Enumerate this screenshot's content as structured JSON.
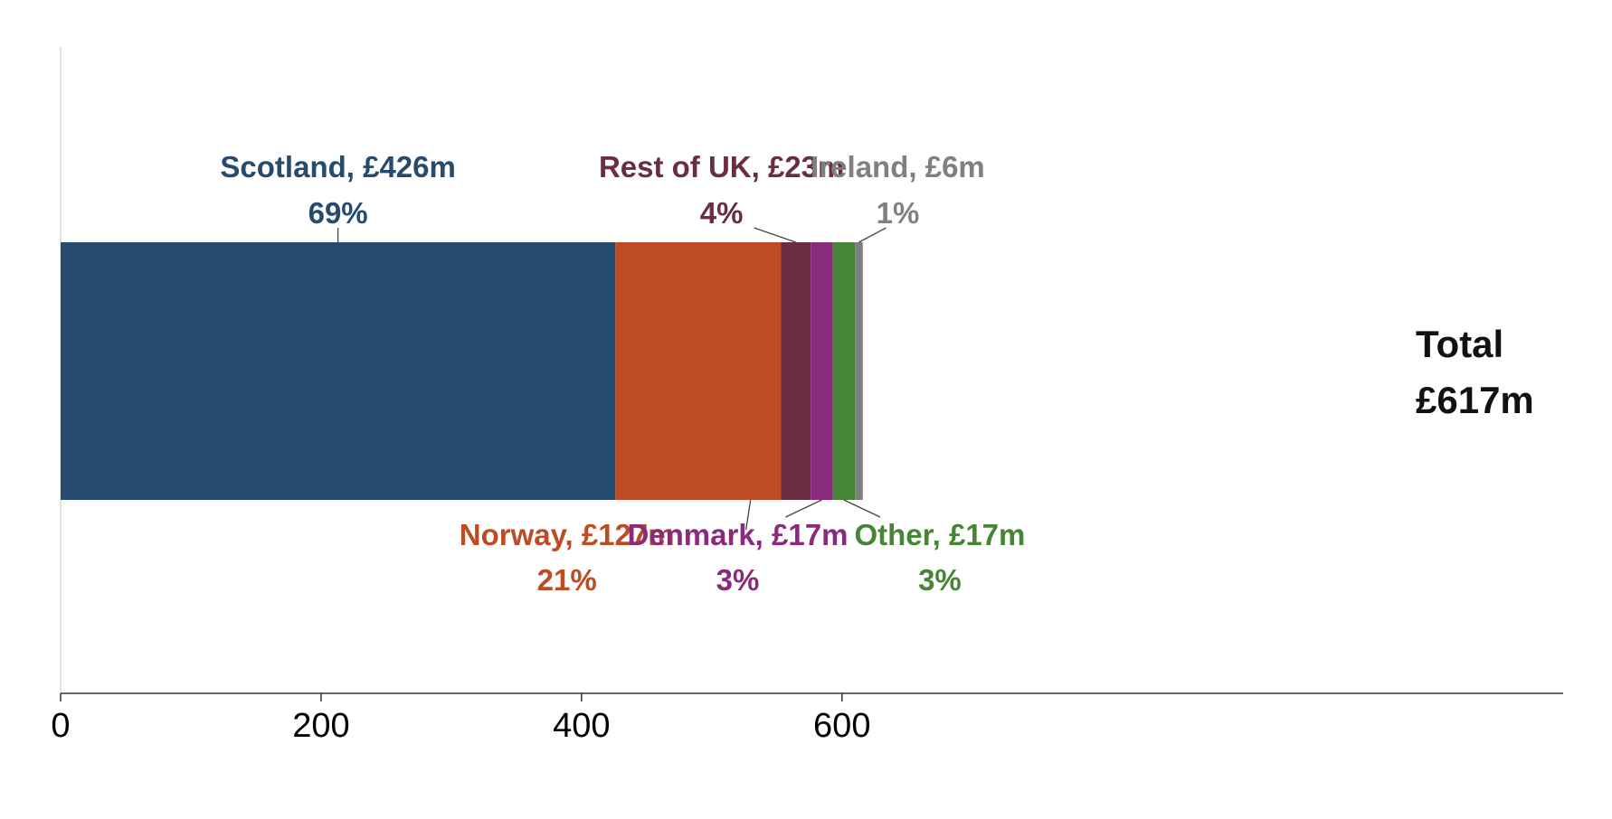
{
  "chart_data": {
    "type": "bar",
    "orientation": "horizontal",
    "stacked": true,
    "series": [
      {
        "name": "Scotland",
        "value": 426,
        "value_label": "Scotland, £426m",
        "percent_label": "69%",
        "color": "#264B6E",
        "label_side": "top"
      },
      {
        "name": "Norway",
        "value": 127,
        "value_label": "Norway, £127m",
        "percent_label": "21%",
        "color": "#BD4C24",
        "label_side": "bottom"
      },
      {
        "name": "Rest of UK",
        "value": 23,
        "value_label": "Rest of UK, £23m",
        "percent_label": "4%",
        "color": "#6B2D41",
        "label_side": "top"
      },
      {
        "name": "Denmark",
        "value": 17,
        "value_label": "Denmark, £17m",
        "percent_label": "3%",
        "color": "#8A2A7C",
        "label_side": "bottom"
      },
      {
        "name": "Other",
        "value": 17,
        "value_label": "Other, £17m",
        "percent_label": "3%",
        "color": "#468535",
        "label_side": "bottom"
      },
      {
        "name": "Ireland",
        "value": 6,
        "value_label": "Ireland, £6m",
        "percent_label": "1%",
        "color": "#808080",
        "label_side": "top"
      }
    ],
    "total_line1": "Total",
    "total_line2": "£617m",
    "xlim": [
      0,
      690
    ],
    "xticks": [
      0,
      200,
      400,
      600
    ],
    "title": "",
    "xlabel": "",
    "ylabel": "",
    "grid": false,
    "legend": "none"
  }
}
